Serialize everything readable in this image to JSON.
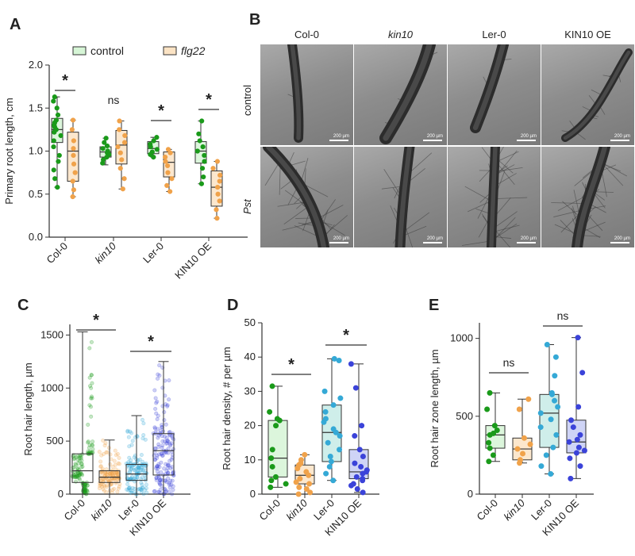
{
  "panels": {
    "a": "A",
    "b": "B",
    "c": "C",
    "d": "D",
    "e": "E"
  },
  "colors": {
    "green": "#1a9a1a",
    "green_fill": "#d6f5d6",
    "orange": "#f0a24a",
    "orange_fill": "#fbe3c4",
    "teal": "#35a9d6",
    "teal_fill": "#c7ebe6",
    "blue": "#3b43d9",
    "blue_fill": "#c7ccf4"
  },
  "micrographs": {
    "columns": [
      "Col-0",
      "kin10",
      "Ler-0",
      "KIN10 OE"
    ],
    "rows": [
      "control",
      "Pst"
    ],
    "scale_label": "200 µm"
  },
  "chart_data": [
    {
      "id": "A",
      "type": "box",
      "ylabel": "Primary root length, cm",
      "ylim": [
        0,
        2.0
      ],
      "yticks": [
        "0.0",
        "0.5",
        "1.0",
        "1.5",
        "2.0"
      ],
      "categories": [
        "Col-0",
        "kin10",
        "Ler-0",
        "KIN10 OE"
      ],
      "legend": [
        "control",
        "flg22"
      ],
      "legend_position": "top",
      "annotations": [
        "*",
        "ns",
        "*",
        "*"
      ],
      "series": [
        {
          "name": "control",
          "boxes": [
            {
              "min": 0.58,
              "q1": 1.1,
              "median": 1.25,
              "q3": 1.38,
              "max": 1.63,
              "points": [
                1.63,
                1.58,
                1.5,
                1.42,
                1.36,
                1.33,
                1.3,
                1.28,
                1.25,
                1.22,
                1.18,
                1.12,
                1.05,
                0.95,
                0.88,
                0.78,
                0.68,
                0.58
              ]
            },
            {
              "min": 0.84,
              "q1": 0.93,
              "median": 0.99,
              "q3": 1.05,
              "max": 1.15,
              "points": [
                1.15,
                1.1,
                1.06,
                1.03,
                1.0,
                0.98,
                0.96,
                0.93,
                0.9,
                0.86
              ]
            },
            {
              "min": 0.93,
              "q1": 0.97,
              "median": 1.03,
              "q3": 1.11,
              "max": 1.16,
              "points": [
                1.16,
                1.12,
                1.08,
                1.05,
                1.02,
                0.99,
                0.96,
                0.93
              ]
            },
            {
              "min": 0.62,
              "q1": 0.86,
              "median": 1.0,
              "q3": 1.11,
              "max": 1.35,
              "points": [
                1.35,
                1.2,
                1.12,
                1.05,
                1.0,
                0.95,
                0.88,
                0.8,
                0.7,
                0.62
              ]
            }
          ]
        },
        {
          "name": "flg22",
          "boxes": [
            {
              "min": 0.47,
              "q1": 0.65,
              "median": 1.0,
              "q3": 1.22,
              "max": 1.36,
              "points": [
                1.36,
                1.25,
                1.12,
                1.03,
                0.95,
                0.85,
                0.75,
                0.65,
                0.55,
                0.47
              ]
            },
            {
              "min": 0.56,
              "q1": 0.85,
              "median": 1.07,
              "q3": 1.24,
              "max": 1.35,
              "points": [
                1.35,
                1.25,
                1.18,
                1.1,
                1.05,
                0.98,
                0.9,
                0.8,
                0.68,
                0.56
              ]
            },
            {
              "min": 0.53,
              "q1": 0.7,
              "median": 0.87,
              "q3": 0.99,
              "max": 1.02,
              "points": [
                1.02,
                0.98,
                0.93,
                0.88,
                0.83,
                0.75,
                0.68,
                0.6,
                0.53
              ]
            },
            {
              "min": 0.22,
              "q1": 0.36,
              "median": 0.58,
              "q3": 0.77,
              "max": 0.88,
              "points": [
                0.88,
                0.8,
                0.72,
                0.65,
                0.58,
                0.5,
                0.42,
                0.32,
                0.22
              ]
            }
          ]
        }
      ]
    },
    {
      "id": "C",
      "type": "box",
      "ylabel": "Root hair length, µm",
      "ylim": [
        0,
        1600
      ],
      "yticks": [
        "0",
        "500",
        "1000",
        "1500"
      ],
      "categories": [
        "Col-0",
        "kin10",
        "Ler-0",
        "KIN10 OE"
      ],
      "annotations": [
        "*",
        "*"
      ],
      "boxes": [
        {
          "min": 0,
          "q1": 110,
          "median": 220,
          "q3": 380,
          "max": 1530
        },
        {
          "min": 0,
          "q1": 110,
          "median": 160,
          "q3": 220,
          "max": 510
        },
        {
          "min": 0,
          "q1": 130,
          "median": 190,
          "q3": 280,
          "max": 740
        },
        {
          "min": 0,
          "q1": 180,
          "median": 410,
          "q3": 570,
          "max": 1250
        }
      ]
    },
    {
      "id": "D",
      "type": "box",
      "ylabel": "Root hair density, # per µm",
      "ylim": [
        0,
        50
      ],
      "yticks": [
        "0",
        "10",
        "20",
        "30",
        "40",
        "50"
      ],
      "categories": [
        "Col-0",
        "kin10",
        "Ler-0",
        "KIN10 OE"
      ],
      "annotations": [
        "*",
        "*"
      ],
      "boxes": [
        {
          "min": 2,
          "q1": 5,
          "median": 10.5,
          "q3": 21.5,
          "max": 31.5,
          "points": [
            31.5,
            24,
            22,
            21.5,
            20,
            13,
            10.5,
            8,
            5,
            4,
            3,
            2
          ]
        },
        {
          "min": 0,
          "q1": 3,
          "median": 5.5,
          "q3": 8.5,
          "max": 11.5,
          "points": [
            11.5,
            10,
            9,
            8.5,
            7.5,
            6.5,
            5.5,
            4.5,
            3.5,
            3,
            2,
            1.5,
            0.5,
            0
          ]
        },
        {
          "min": 4,
          "q1": 9.5,
          "median": 18,
          "q3": 26,
          "max": 39.5,
          "points": [
            39.5,
            39,
            30,
            28,
            26,
            24,
            22,
            21,
            19,
            18,
            17,
            15,
            13,
            11,
            9.5,
            8,
            6,
            4
          ]
        },
        {
          "min": 0.5,
          "q1": 4.5,
          "median": 6.5,
          "q3": 13,
          "max": 38,
          "points": [
            38,
            31,
            20,
            17,
            13,
            11,
            9,
            8,
            7,
            6.5,
            6,
            5,
            4.5,
            4,
            3,
            2.5,
            1.5,
            0.5
          ]
        }
      ]
    },
    {
      "id": "E",
      "type": "box",
      "ylabel": "Root hair zone length, µm",
      "ylim": [
        0,
        1100
      ],
      "yticks": [
        "0",
        "500",
        "1000"
      ],
      "categories": [
        "Col-0",
        "kin10",
        "Ler-0",
        "KIN10 OE"
      ],
      "annotations": [
        "ns",
        "ns"
      ],
      "boxes": [
        {
          "min": 210,
          "q1": 295,
          "median": 380,
          "q3": 440,
          "max": 650,
          "points": [
            650,
            545,
            440,
            410,
            390,
            380,
            330,
            295,
            250,
            210
          ]
        },
        {
          "min": 200,
          "q1": 220,
          "median": 290,
          "q3": 360,
          "max": 610,
          "points": [
            610,
            545,
            360,
            320,
            290,
            260,
            220,
            200
          ]
        },
        {
          "min": 130,
          "q1": 300,
          "median": 520,
          "q3": 640,
          "max": 960,
          "points": [
            960,
            880,
            760,
            650,
            640,
            600,
            560,
            520,
            480,
            430,
            380,
            300,
            250,
            180,
            130
          ]
        },
        {
          "min": 100,
          "q1": 265,
          "median": 335,
          "q3": 475,
          "max": 1005,
          "points": [
            1005,
            780,
            560,
            475,
            430,
            380,
            350,
            335,
            300,
            280,
            265,
            230,
            180,
            100
          ]
        }
      ]
    }
  ]
}
